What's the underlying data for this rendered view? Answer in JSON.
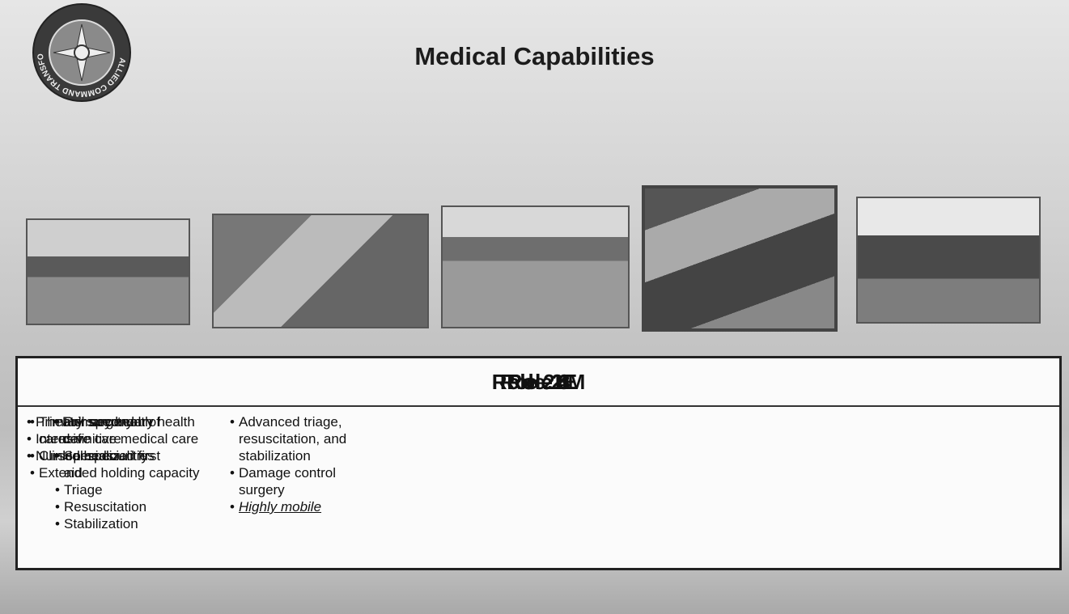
{
  "header": {
    "title": "Medical Capabilities",
    "logo_text": "ALLIED COMMAND TRANSFORMATION"
  },
  "roles": [
    {
      "name": "Role 1",
      "items": [
        "Primary health care",
        "Specialized first aid",
        "Triage",
        "Resuscitation",
        "Stabilization"
      ]
    },
    {
      "name": "Role 2LM",
      "items": [
        "Advanced triage, resuscitation, and stabilization",
        "Damage control surgery",
        "Highly mobile"
      ]
    },
    {
      "name": "Role 2E",
      "items": [
        "Primary surgery",
        "Intensive care",
        "Nursed beds"
      ]
    },
    {
      "name": "Role 3",
      "items": [
        "Theater secondary health care",
        "Clinical specialities",
        "Extended holding capacity"
      ]
    },
    {
      "name": "Role 4",
      "items": [
        "Full spectrum of definitive medical care",
        "Home country"
      ]
    }
  ]
}
